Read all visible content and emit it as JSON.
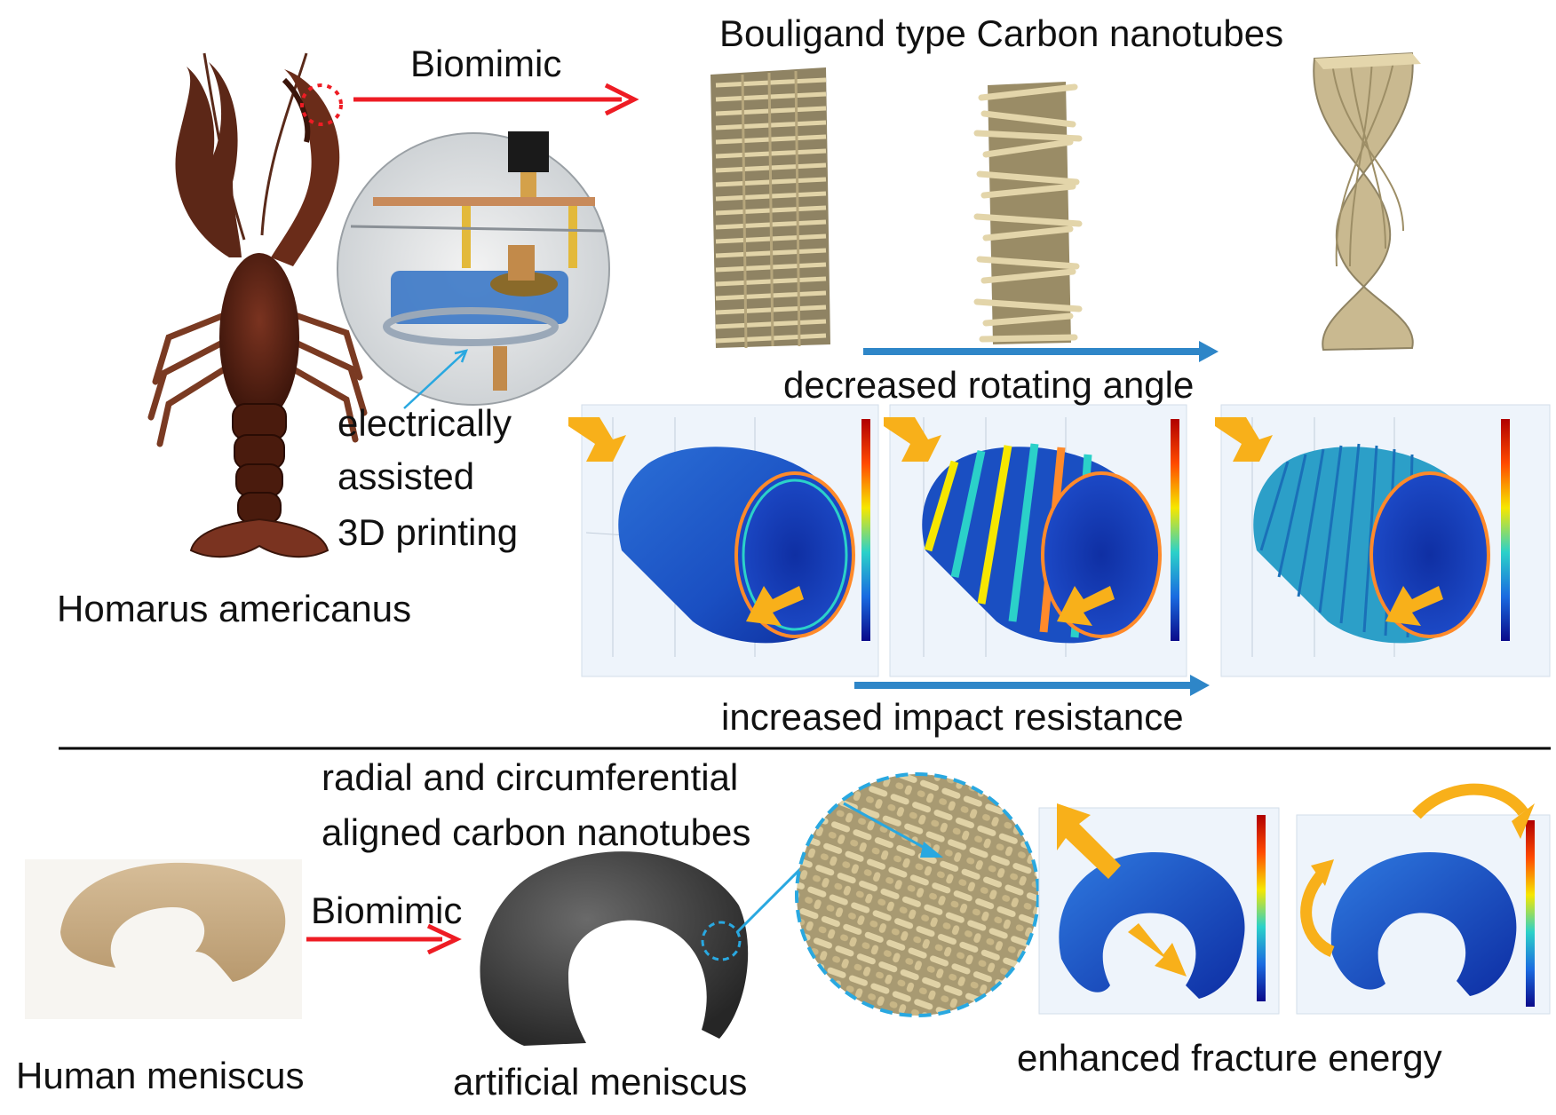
{
  "top": {
    "bouligand_title": "Bouligand type Carbon nanotubes",
    "biomimic_label": "Biomimic",
    "printing_label": [
      "electrically",
      "assisted",
      "3D printing"
    ],
    "species_label": "Homarus americanus",
    "rotating_angle_label": "decreased rotating angle",
    "impact_label": "increased impact resistance"
  },
  "bottom": {
    "aligned_label": [
      "radial and circumferential",
      "aligned carbon nanotubes"
    ],
    "biomimic_label": "Biomimic",
    "human_label": "Human meniscus",
    "artificial_label": "artificial  meniscus",
    "fracture_label": "enhanced fracture energy"
  },
  "colors": {
    "red_arrow": "#ee1c24",
    "blue_arrow": "#2e86c8",
    "orange_arrow": "#f8b01a",
    "fiber": "#d3c39a",
    "lobster": "#6a2a18",
    "dashed_circle": "#29a8e0"
  },
  "icons": [
    "lobster-image",
    "printer-setup-image",
    "cnt-block-image",
    "stress-map-image",
    "meniscus-image"
  ]
}
